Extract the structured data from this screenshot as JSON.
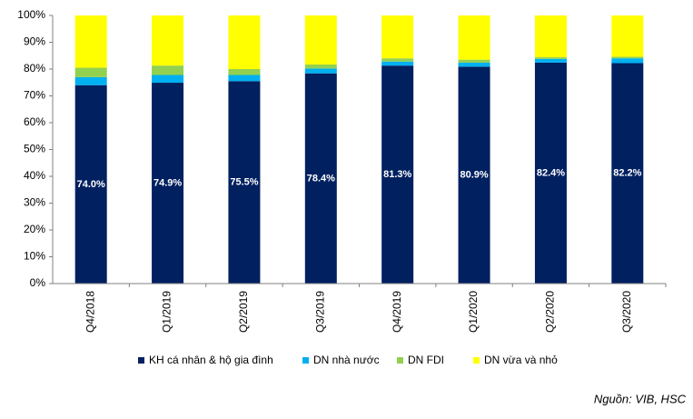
{
  "chart_data": {
    "type": "stacked_bar",
    "categories": [
      "Q4/2018",
      "Q1/2019",
      "Q2/2019",
      "Q3/2019",
      "Q4/2019",
      "Q1/2020",
      "Q2/2020",
      "Q3/2020"
    ],
    "series": [
      {
        "name": "KH cá nhân & hộ gia đình",
        "color": "#002060",
        "values": [
          74.0,
          74.9,
          75.5,
          78.4,
          81.3,
          80.9,
          82.4,
          82.2
        ],
        "value_labels": [
          "74.0%",
          "74.9%",
          "75.5%",
          "78.4%",
          "81.3%",
          "80.9%",
          "82.4%",
          "82.2%"
        ]
      },
      {
        "name": "DN nhà nước",
        "color": "#00b0f0",
        "values": [
          3.0,
          2.9,
          2.3,
          1.8,
          1.5,
          1.5,
          1.4,
          1.8
        ]
      },
      {
        "name": "DN FDI",
        "color": "#92d050",
        "values": [
          3.5,
          3.5,
          2.2,
          1.5,
          1.2,
          1.1,
          0.6,
          0.6
        ]
      },
      {
        "name": "DN vừa và nhỏ",
        "color": "#ffff00",
        "values": [
          19.5,
          18.7,
          20.0,
          18.3,
          16.0,
          16.5,
          15.6,
          15.4
        ]
      }
    ],
    "ylim": [
      0,
      100
    ],
    "yticks": [
      {
        "value": 0,
        "label": "0%"
      },
      {
        "value": 10,
        "label": "10%"
      },
      {
        "value": 20,
        "label": "20%"
      },
      {
        "value": 30,
        "label": "30%"
      },
      {
        "value": 40,
        "label": "40%"
      },
      {
        "value": 50,
        "label": "50%"
      },
      {
        "value": 60,
        "label": "60%"
      },
      {
        "value": 70,
        "label": "70%"
      },
      {
        "value": 80,
        "label": "80%"
      },
      {
        "value": 90,
        "label": "90%"
      },
      {
        "value": 100,
        "label": "100%"
      }
    ],
    "legend": "bottom",
    "source": "Nguồn: VIB, HSC"
  }
}
